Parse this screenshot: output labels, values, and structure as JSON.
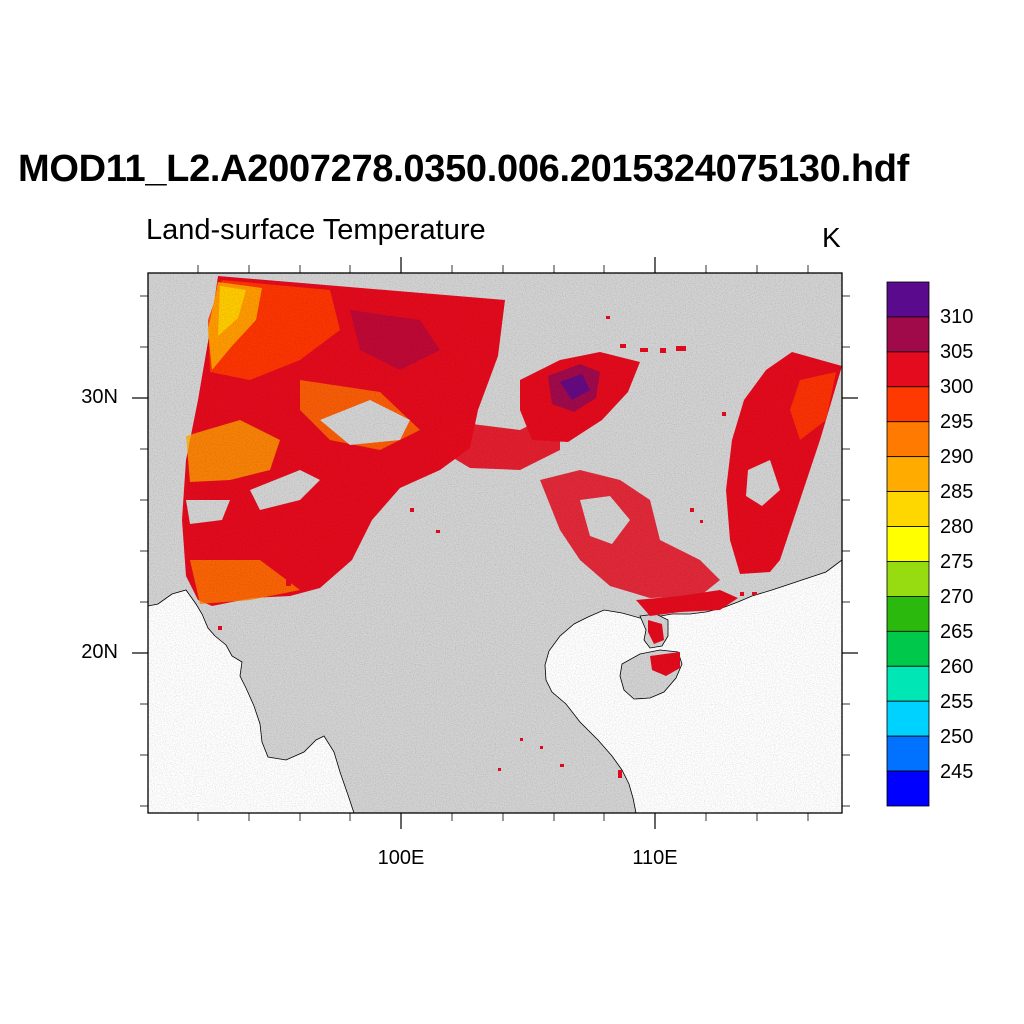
{
  "title": "MOD11_L2.A2007278.0350.006.2015324075130.hdf",
  "subtitle": "Land-surface Temperature",
  "units": "K",
  "lat_ticks": [
    "30N",
    "20N"
  ],
  "lon_ticks": [
    "100E",
    "110E"
  ],
  "colorbar": {
    "labels": [
      "310",
      "305",
      "300",
      "295",
      "290",
      "285",
      "280",
      "275",
      "270",
      "265",
      "260",
      "255",
      "250",
      "245"
    ],
    "colors": [
      "#5a0a8c",
      "#a00a4b",
      "#e30b1d",
      "#ff3a00",
      "#ff7a00",
      "#ffab00",
      "#ffd700",
      "#ffff00",
      "#97dc10",
      "#2ab90c",
      "#00c84a",
      "#00e6b4",
      "#00d2ff",
      "#0072ff",
      "#0000ff"
    ]
  },
  "map": {
    "land_color": "#d3d3d3",
    "ocean_color": "#ffffff",
    "extent": {
      "lon": [
        90,
        117.3
      ],
      "lat": [
        14.3,
        35.5
      ]
    }
  }
}
